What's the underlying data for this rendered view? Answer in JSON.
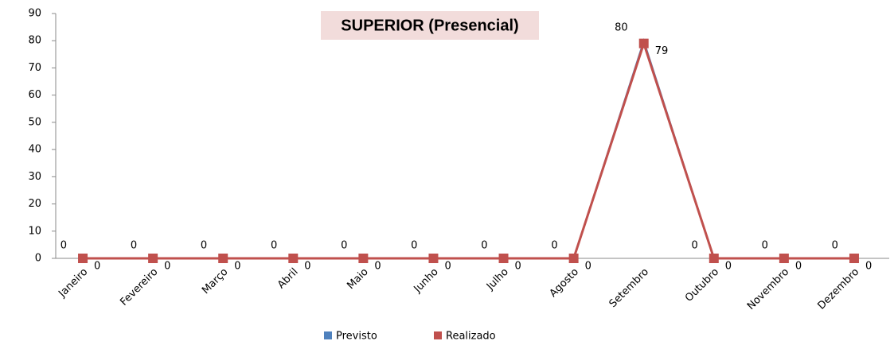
{
  "chart_data": {
    "type": "line",
    "title": "SUPERIOR (Presencial)",
    "categories": [
      "Janeiro",
      "Fevereiro",
      "Março",
      "Abril",
      "Maio",
      "Junho",
      "Julho",
      "Agosto",
      "Setembro",
      "Outubro",
      "Novembro",
      "Dezembro"
    ],
    "series": [
      {
        "name": "Previsto",
        "color": "#4f81bd",
        "values": [
          0,
          0,
          0,
          0,
          0,
          0,
          0,
          0,
          80,
          0,
          0,
          0
        ]
      },
      {
        "name": "Realizado",
        "color": "#c0504d",
        "values": [
          0,
          0,
          0,
          0,
          0,
          0,
          0,
          0,
          79,
          0,
          0,
          0
        ]
      }
    ],
    "ylim": [
      0,
      90
    ],
    "yticks": [
      0,
      10,
      20,
      30,
      40,
      50,
      60,
      70,
      80,
      90
    ],
    "grid": false,
    "legend": "bottom"
  }
}
